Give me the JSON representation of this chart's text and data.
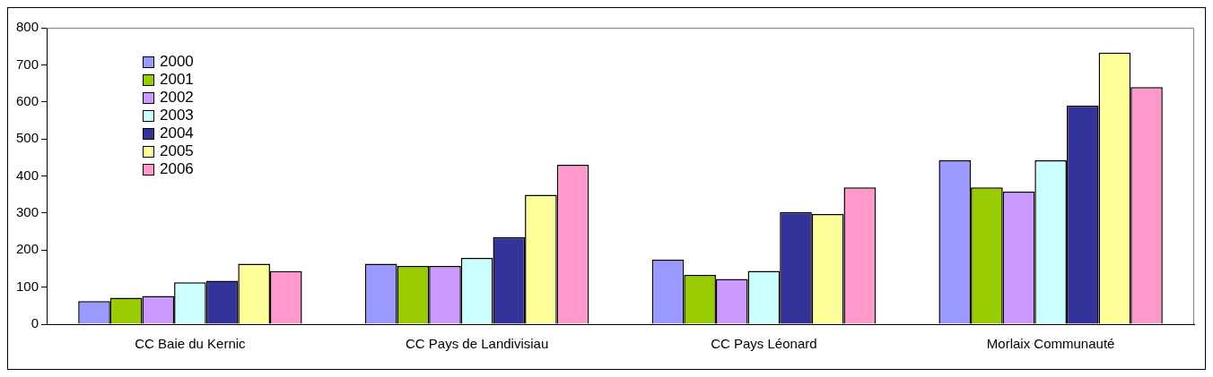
{
  "chart_data": {
    "type": "bar",
    "categories": [
      "CC Baie du Kernic",
      "CC Pays de Landivisiau",
      "CC Pays Léonard",
      "Morlaix Communauté"
    ],
    "series": [
      {
        "name": "2000",
        "color": "#9999ff",
        "values": [
          62,
          163,
          174,
          442
        ]
      },
      {
        "name": "2001",
        "color": "#99cc00",
        "values": [
          71,
          157,
          133,
          369
        ]
      },
      {
        "name": "2002",
        "color": "#cc99ff",
        "values": [
          76,
          157,
          122,
          358
        ]
      },
      {
        "name": "2003",
        "color": "#ccffff",
        "values": [
          113,
          179,
          144,
          442
        ]
      },
      {
        "name": "2004",
        "color": "#333399",
        "values": [
          117,
          235,
          303,
          590
        ]
      },
      {
        "name": "2005",
        "color": "#ffff99",
        "values": [
          163,
          349,
          297,
          733
        ]
      },
      {
        "name": "2006",
        "color": "#ff99cc",
        "values": [
          143,
          430,
          369,
          640
        ]
      }
    ],
    "ylim": [
      0,
      800
    ],
    "yticks": [
      0,
      100,
      200,
      300,
      400,
      500,
      600,
      700,
      800
    ],
    "grid": false,
    "legend": "top left"
  }
}
